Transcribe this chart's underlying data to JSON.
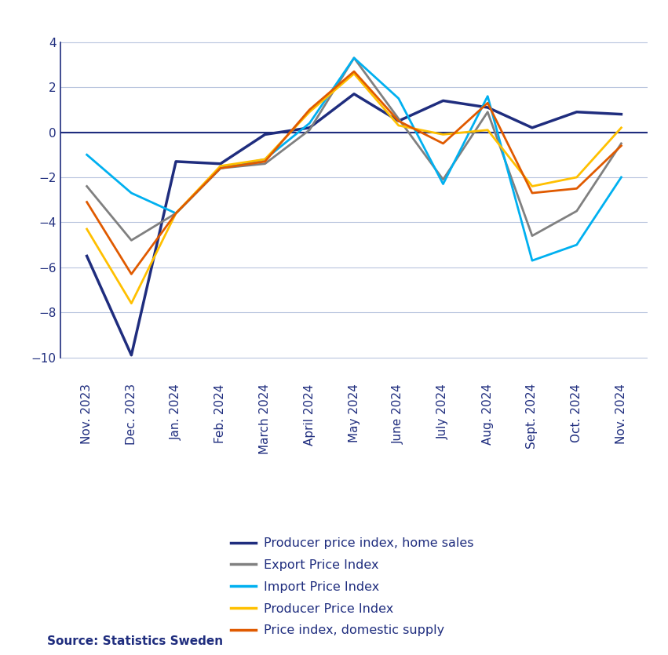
{
  "x_labels": [
    "Nov. 2023",
    "Dec. 2023",
    "Jan. 2024",
    "Feb. 2024",
    "March 2024",
    "April 2024",
    "May 2024",
    "June 2024",
    "July 2024",
    "Aug. 2024",
    "Sept. 2024",
    "Oct. 2024",
    "Nov. 2024"
  ],
  "series": {
    "Producer price index, home sales": {
      "values": [
        -5.5,
        -9.9,
        -1.3,
        -1.4,
        -0.1,
        0.2,
        1.7,
        0.5,
        1.4,
        1.1,
        0.2,
        0.9,
        0.8
      ],
      "color": "#1f2d7e",
      "linewidth": 2.5
    },
    "Export Price Index": {
      "values": [
        -2.4,
        -4.8,
        -3.6,
        -1.6,
        -1.4,
        0.1,
        3.3,
        0.6,
        -2.1,
        0.9,
        -4.6,
        -3.5,
        -0.5
      ],
      "color": "#808080",
      "linewidth": 2.0
    },
    "Import Price Index": {
      "values": [
        -1.0,
        -2.7,
        -3.6,
        -1.6,
        -1.2,
        0.4,
        3.3,
        1.5,
        -2.3,
        1.6,
        -5.7,
        -5.0,
        -2.0
      ],
      "color": "#00b0f0",
      "linewidth": 2.0
    },
    "Producer Price Index": {
      "values": [
        -4.3,
        -7.6,
        -3.6,
        -1.5,
        -1.2,
        0.9,
        2.6,
        0.3,
        -0.1,
        0.1,
        -2.4,
        -2.0,
        0.2
      ],
      "color": "#ffc000",
      "linewidth": 2.0
    },
    "Price index, domestic supply": {
      "values": [
        -3.1,
        -6.3,
        -3.6,
        -1.6,
        -1.3,
        1.0,
        2.7,
        0.5,
        -0.5,
        1.3,
        -2.7,
        -2.5,
        -0.6
      ],
      "color": "#e05a00",
      "linewidth": 2.0
    }
  },
  "ylim": [
    -11,
    5
  ],
  "yticks": [
    -10,
    -8,
    -6,
    -4,
    -2,
    0,
    2,
    4
  ],
  "source": "Source: Statistics Sweden",
  "background_color": "#ffffff",
  "grid_color": "#b8c4de",
  "zero_line_color": "#1f2d7e",
  "spine_color": "#1f2d7e",
  "text_color": "#1f2d7e",
  "legend_order": [
    "Producer price index, home sales",
    "Export Price Index",
    "Import Price Index",
    "Producer Price Index",
    "Price index, domestic supply"
  ]
}
